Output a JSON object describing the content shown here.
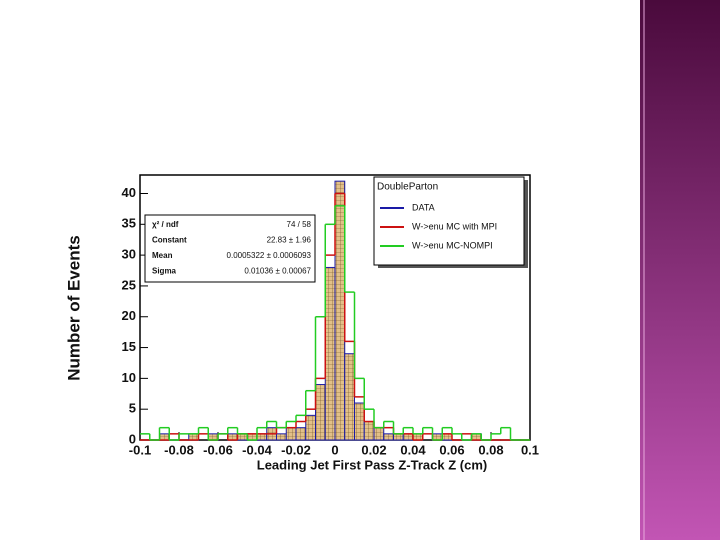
{
  "chart_data": {
    "type": "histogram",
    "y_label": "Number of Events",
    "x_label": "Leading Jet First Pass Z-Track Z (cm)",
    "xlim": [
      -0.1,
      0.1
    ],
    "ylim": [
      0,
      43
    ],
    "xticks": [
      -0.1,
      -0.08,
      -0.06,
      -0.04,
      -0.02,
      0,
      0.02,
      0.04,
      0.06,
      0.08,
      0.1
    ],
    "yticks": [
      0,
      5,
      10,
      15,
      20,
      25,
      30,
      35,
      40
    ],
    "bins": [
      -0.1,
      -0.095,
      -0.09,
      -0.085,
      -0.08,
      -0.075,
      -0.07,
      -0.065,
      -0.06,
      -0.055,
      -0.05,
      -0.045,
      -0.04,
      -0.035,
      -0.03,
      -0.025,
      -0.02,
      -0.015,
      -0.01,
      -0.005,
      0,
      0.005,
      0.01,
      0.015,
      0.02,
      0.025,
      0.03,
      0.035,
      0.04,
      0.045,
      0.05,
      0.055,
      0.06,
      0.065,
      0.07,
      0.075,
      0.08,
      0.085,
      0.09,
      0.095,
      0.1
    ],
    "legend_title": "DoubleParton",
    "legend_position": "top right",
    "series": [
      {
        "name": "DATA",
        "color": "#1a1aa6",
        "fill": "#d9b26a",
        "values": [
          0,
          0,
          1,
          0,
          0,
          1,
          0,
          1,
          0,
          1,
          1,
          1,
          1,
          2,
          1,
          2,
          2,
          4,
          9,
          28,
          42,
          14,
          6,
          3,
          2,
          1,
          1,
          1,
          1,
          0,
          1,
          1,
          0,
          0,
          1,
          0,
          0,
          0,
          0,
          0
        ]
      },
      {
        "name": "W->enu MC with MPI",
        "color": "#cc1111",
        "values": [
          0,
          0,
          0,
          1,
          0,
          0,
          1,
          0,
          1,
          0,
          1,
          1,
          1,
          1,
          2,
          2,
          3,
          5,
          10,
          30,
          40,
          16,
          7,
          3,
          2,
          2,
          1,
          1,
          0,
          1,
          0,
          1,
          0,
          1,
          0,
          0,
          0,
          0,
          0,
          0
        ]
      },
      {
        "name": "W->enu MC-NOMPI",
        "color": "#22cc22",
        "values": [
          1,
          0,
          2,
          0,
          1,
          1,
          2,
          0,
          1,
          2,
          1,
          0,
          2,
          3,
          2,
          3,
          4,
          8,
          20,
          35,
          38,
          24,
          10,
          5,
          2,
          3,
          1,
          2,
          1,
          2,
          0,
          2,
          1,
          0,
          1,
          0,
          1,
          2,
          0,
          0
        ]
      }
    ],
    "stats_box": {
      "rows": [
        [
          "χ² / ndf",
          "74 / 58"
        ],
        [
          "Constant",
          "22.83 ± 1.96"
        ],
        [
          "Mean",
          "0.0005322 ± 0.0006093"
        ],
        [
          "Sigma",
          "0.01036 ± 0.00067"
        ]
      ]
    }
  }
}
